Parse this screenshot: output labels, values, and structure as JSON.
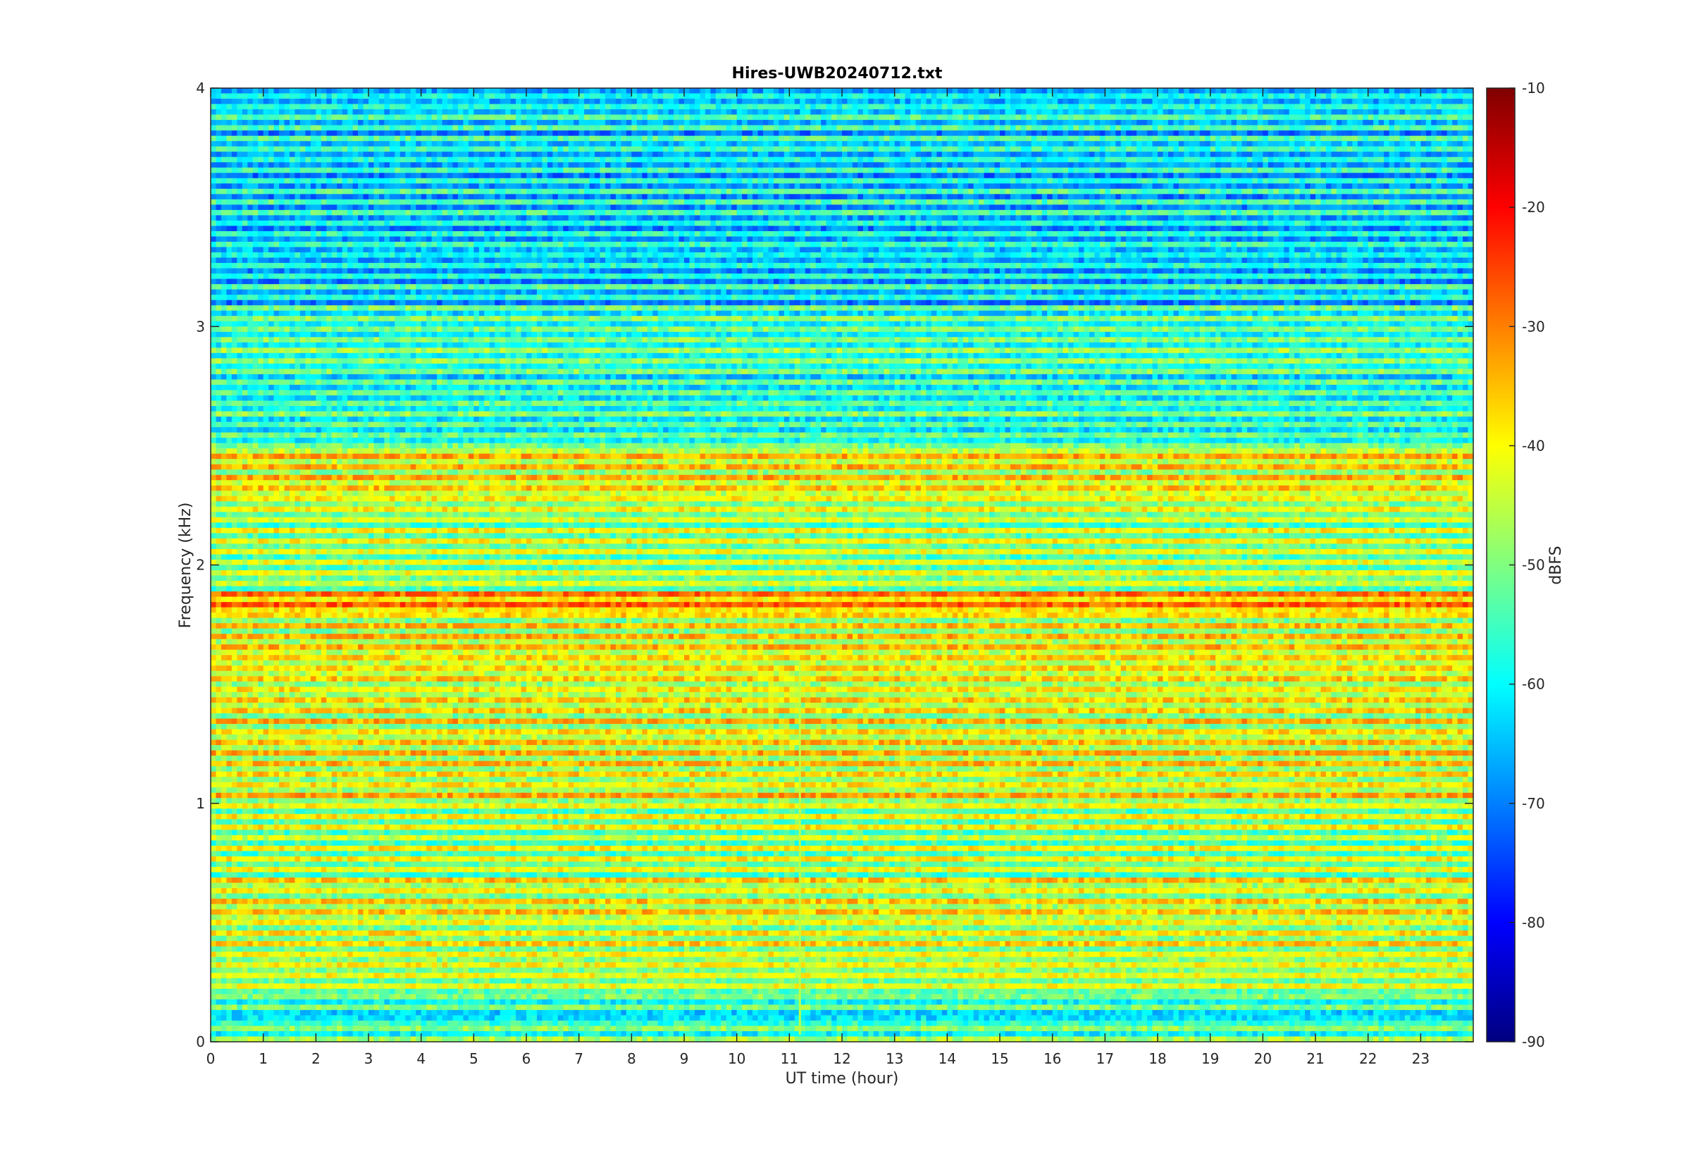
{
  "chart_data": {
    "type": "heatmap",
    "title": "Hires-UWB20240712.txt",
    "xlabel": "UT time (hour)",
    "ylabel": "Frequency (kHz)",
    "xlim": [
      0,
      24
    ],
    "ylim": [
      0,
      4
    ],
    "x_ticks": [
      "0",
      "1",
      "2",
      "3",
      "4",
      "5",
      "6",
      "7",
      "8",
      "9",
      "10",
      "11",
      "12",
      "13",
      "14",
      "15",
      "16",
      "17",
      "18",
      "19",
      "20",
      "21",
      "22",
      "23"
    ],
    "y_ticks": [
      "0",
      "1",
      "2",
      "3",
      "4"
    ],
    "colorbar": {
      "label": "dBFS",
      "clim": [
        -90,
        -10
      ],
      "ticks": [
        "-10",
        "-20",
        "-30",
        "-40",
        "-50",
        "-60",
        "-70",
        "-80",
        "-90"
      ],
      "colormap": "jet"
    },
    "band_levels_dbfs": [
      {
        "f_khz": [
          0.0,
          0.08
        ],
        "level": -52
      },
      {
        "f_khz": [
          0.08,
          0.12
        ],
        "level": -68
      },
      {
        "f_khz": [
          0.12,
          0.2
        ],
        "level": -55
      },
      {
        "f_khz": [
          0.2,
          0.38
        ],
        "level": -46
      },
      {
        "f_khz": [
          0.38,
          0.7
        ],
        "level": -43
      },
      {
        "f_khz": [
          0.7,
          1.0
        ],
        "level": -47
      },
      {
        "f_khz": [
          1.0,
          1.4
        ],
        "level": -42
      },
      {
        "f_khz": [
          1.4,
          1.8
        ],
        "level": -42
      },
      {
        "f_khz": [
          1.8,
          1.9
        ],
        "level": -33
      },
      {
        "f_khz": [
          1.9,
          2.3
        ],
        "level": -47
      },
      {
        "f_khz": [
          2.3,
          2.5
        ],
        "level": -41
      },
      {
        "f_khz": [
          2.5,
          3.1
        ],
        "level": -56
      },
      {
        "f_khz": [
          3.1,
          4.0
        ],
        "level": -62
      }
    ],
    "features": [
      {
        "type": "vertical_line",
        "x_hour": 11.2,
        "level": -45
      }
    ]
  }
}
